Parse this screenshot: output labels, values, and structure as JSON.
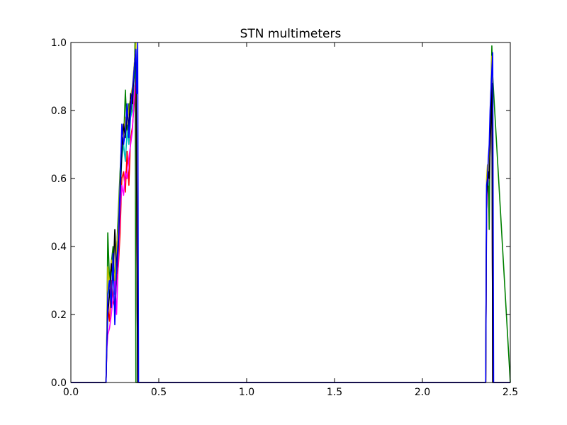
{
  "chart_data": {
    "type": "line",
    "title": "STN multimeters",
    "xlabel": "",
    "ylabel": "",
    "xlim": [
      0.0,
      2.5
    ],
    "ylim": [
      0.0,
      1.0
    ],
    "xticks": [
      0.0,
      0.5,
      1.0,
      1.5,
      2.0,
      2.5
    ],
    "xtick_labels": [
      "0.0",
      "0.5",
      "1.0",
      "1.5",
      "2.0",
      "2.5"
    ],
    "yticks": [
      0.0,
      0.2,
      0.4,
      0.6,
      0.8,
      1.0
    ],
    "ytick_labels": [
      "0.0",
      "0.2",
      "0.4",
      "0.6",
      "0.8",
      "1.0"
    ],
    "grid": false,
    "legend": "none",
    "series": [
      {
        "color": "#008000",
        "x": [
          0,
          0.2,
          0.205,
          0.21,
          0.22,
          0.23,
          0.24,
          0.25,
          0.26,
          0.27,
          0.28,
          0.29,
          0.3,
          0.31,
          0.315,
          0.32,
          0.33,
          0.34,
          0.35,
          0.36,
          0.365,
          0.37,
          0.38,
          0.39,
          2.36,
          2.365,
          2.37,
          2.375,
          2.38,
          2.385,
          2.39,
          2.395,
          2.4,
          2.5
        ],
        "y": [
          0,
          0,
          0.15,
          0.44,
          0.3,
          0.35,
          0.4,
          0.28,
          0.38,
          0.5,
          0.62,
          0.72,
          0.7,
          0.86,
          0.8,
          0.74,
          0.82,
          0.78,
          0.85,
          0.9,
          1.0,
          0.0,
          0.0,
          0.0,
          0.0,
          0.5,
          0.56,
          0.62,
          0.45,
          0.75,
          0.85,
          0.99,
          0.9,
          0.0
        ]
      },
      {
        "color": "#ff0000",
        "x": [
          0,
          0.2,
          0.205,
          0.21,
          0.22,
          0.23,
          0.24,
          0.25,
          0.26,
          0.27,
          0.28,
          0.29,
          0.3,
          0.31,
          0.32,
          0.33,
          0.34,
          0.35,
          0.36,
          0.37,
          0.38,
          0.39,
          2.36,
          2.365,
          2.37,
          2.375,
          2.38,
          2.385,
          2.39,
          2.395,
          2.4,
          2.5
        ],
        "y": [
          0,
          0,
          0.12,
          0.22,
          0.18,
          0.3,
          0.24,
          0.22,
          0.3,
          0.34,
          0.44,
          0.6,
          0.62,
          0.56,
          0.68,
          0.58,
          0.72,
          0.75,
          0.82,
          0.88,
          0.0,
          0.0,
          0.0,
          0.55,
          0.63,
          0.58,
          0.62,
          0.7,
          0.8,
          0.9,
          0.0,
          0.0
        ]
      },
      {
        "color": "#00bfbf",
        "x": [
          0,
          0.2,
          0.205,
          0.21,
          0.22,
          0.23,
          0.24,
          0.25,
          0.26,
          0.27,
          0.28,
          0.29,
          0.3,
          0.31,
          0.32,
          0.33,
          0.34,
          0.35,
          0.36,
          0.37,
          0.38,
          0.39,
          2.36,
          2.365,
          2.37,
          2.375,
          2.38,
          2.385,
          2.39,
          2.395,
          2.4,
          2.5
        ],
        "y": [
          0,
          0,
          0.14,
          0.3,
          0.25,
          0.33,
          0.3,
          0.26,
          0.36,
          0.42,
          0.55,
          0.66,
          0.7,
          0.65,
          0.74,
          0.7,
          0.78,
          0.8,
          0.86,
          0.92,
          0.0,
          0.0,
          0.0,
          0.56,
          0.6,
          0.58,
          0.66,
          0.74,
          0.84,
          0.94,
          0.0,
          0.0
        ]
      },
      {
        "color": "#ff00ff",
        "x": [
          0,
          0.2,
          0.205,
          0.21,
          0.22,
          0.23,
          0.24,
          0.25,
          0.26,
          0.27,
          0.28,
          0.29,
          0.3,
          0.31,
          0.32,
          0.33,
          0.34,
          0.35,
          0.36,
          0.37,
          0.38,
          0.39,
          2.36,
          2.365,
          2.37,
          2.375,
          2.38,
          2.385,
          2.39,
          2.395,
          2.4,
          2.5
        ],
        "y": [
          0,
          0,
          0.1,
          0.14,
          0.16,
          0.2,
          0.25,
          0.3,
          0.2,
          0.36,
          0.5,
          0.58,
          0.55,
          0.62,
          0.6,
          0.66,
          0.7,
          0.74,
          0.84,
          0.9,
          0.0,
          0.0,
          0.0,
          0.5,
          0.58,
          0.6,
          0.64,
          0.72,
          0.82,
          0.92,
          0.0,
          0.0
        ]
      },
      {
        "color": "#bfbf00",
        "x": [
          0,
          0.2,
          0.205,
          0.21,
          0.22,
          0.23,
          0.24,
          0.25,
          0.26,
          0.27,
          0.28,
          0.29,
          0.3,
          0.31,
          0.32,
          0.33,
          0.34,
          0.35,
          0.36,
          0.37,
          0.38,
          0.39,
          2.36,
          2.365,
          2.37,
          2.375,
          2.38,
          2.385,
          2.39,
          2.395,
          2.4,
          2.5
        ],
        "y": [
          0,
          0,
          0.16,
          0.34,
          0.28,
          0.36,
          0.34,
          0.3,
          0.4,
          0.46,
          0.6,
          0.7,
          0.72,
          0.78,
          0.76,
          0.8,
          0.84,
          0.87,
          0.93,
          1.0,
          0.0,
          0.0,
          0.0,
          0.6,
          0.64,
          0.6,
          0.68,
          0.76,
          0.86,
          0.96,
          0.0,
          0.0
        ]
      },
      {
        "color": "#000000",
        "x": [
          0,
          0.2,
          0.205,
          0.21,
          0.22,
          0.23,
          0.24,
          0.25,
          0.26,
          0.27,
          0.28,
          0.29,
          0.3,
          0.31,
          0.32,
          0.33,
          0.34,
          0.35,
          0.36,
          0.37,
          0.38,
          0.39,
          2.36,
          2.365,
          2.37,
          2.375,
          2.38,
          2.385,
          2.39,
          2.395,
          2.4,
          2.5
        ],
        "y": [
          0,
          0,
          0.12,
          0.2,
          0.26,
          0.35,
          0.3,
          0.45,
          0.32,
          0.4,
          0.55,
          0.68,
          0.76,
          0.72,
          0.8,
          0.75,
          0.85,
          0.82,
          0.92,
          0.98,
          0.0,
          0.0,
          0.0,
          0.55,
          0.58,
          0.62,
          0.6,
          0.68,
          0.78,
          0.88,
          0.0,
          0.0
        ]
      },
      {
        "color": "#0000ff",
        "x": [
          0,
          0.2,
          0.205,
          0.21,
          0.22,
          0.23,
          0.24,
          0.25,
          0.26,
          0.27,
          0.28,
          0.29,
          0.3,
          0.31,
          0.32,
          0.33,
          0.34,
          0.35,
          0.36,
          0.37,
          0.375,
          0.38,
          0.385,
          0.39,
          2.36,
          2.365,
          2.37,
          2.375,
          2.38,
          2.385,
          2.39,
          2.395,
          2.4,
          2.405,
          2.5
        ],
        "y": [
          0,
          0,
          0.12,
          0.26,
          0.3,
          0.22,
          0.38,
          0.17,
          0.34,
          0.42,
          0.58,
          0.76,
          0.7,
          0.74,
          0.82,
          0.72,
          0.8,
          0.86,
          0.92,
          0.98,
          0.85,
          1.0,
          0.0,
          0.0,
          0.0,
          0.58,
          0.6,
          0.66,
          0.7,
          0.8,
          0.86,
          0.92,
          0.97,
          0.0,
          0.0
        ]
      }
    ]
  }
}
